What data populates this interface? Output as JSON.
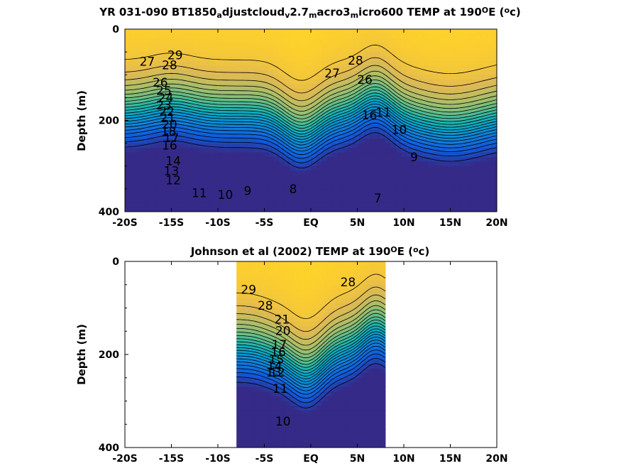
{
  "chart_data": [
    {
      "type": "contour",
      "title_parts": [
        "YR 031-090 BT1850",
        "a",
        "djustcloud",
        "v",
        "2.7",
        "m",
        "acro3",
        "m",
        "icro600 TEMP at 190",
        "O",
        "E (",
        "o",
        "c)"
      ],
      "ylabel": "Depth (m)",
      "xlabel": "",
      "x_ticks": [
        "-20S",
        "-15S",
        "-10S",
        "-5S",
        "EQ",
        "5N",
        "10N",
        "15N",
        "20N"
      ],
      "y_ticks": [
        "0",
        "200",
        "400"
      ],
      "xlim": [
        -20,
        20
      ],
      "ylim": [
        0,
        400
      ],
      "y_reversed": true,
      "data_extent": [
        -20,
        20
      ],
      "colormap": "parula",
      "contour_labels": [
        {
          "text": "29",
          "lat": -14.6,
          "depth": 58
        },
        {
          "text": "28",
          "lat": -15.2,
          "depth": 80
        },
        {
          "text": "27",
          "lat": -17.6,
          "depth": 72
        },
        {
          "text": "26",
          "lat": -16.2,
          "depth": 118
        },
        {
          "text": "25",
          "lat": -15.8,
          "depth": 136
        },
        {
          "text": "24",
          "lat": -15.6,
          "depth": 152
        },
        {
          "text": "23",
          "lat": -15.8,
          "depth": 168
        },
        {
          "text": "22",
          "lat": -15.5,
          "depth": 182
        },
        {
          "text": "21",
          "lat": -15.4,
          "depth": 196
        },
        {
          "text": "20",
          "lat": -15.2,
          "depth": 210
        },
        {
          "text": "18",
          "lat": -15.3,
          "depth": 226
        },
        {
          "text": "17",
          "lat": -15.0,
          "depth": 240
        },
        {
          "text": "16",
          "lat": -15.2,
          "depth": 256
        },
        {
          "text": "14",
          "lat": -14.8,
          "depth": 290
        },
        {
          "text": "13",
          "lat": -15.0,
          "depth": 312
        },
        {
          "text": "12",
          "lat": -14.8,
          "depth": 332
        },
        {
          "text": "11",
          "lat": -12.0,
          "depth": 360
        },
        {
          "text": "10",
          "lat": -9.2,
          "depth": 364
        },
        {
          "text": "9",
          "lat": -6.8,
          "depth": 356
        },
        {
          "text": "8",
          "lat": -1.9,
          "depth": 352
        },
        {
          "text": "7",
          "lat": 7.2,
          "depth": 372
        },
        {
          "text": "28",
          "lat": 4.8,
          "depth": 70
        },
        {
          "text": "27",
          "lat": 2.3,
          "depth": 98
        },
        {
          "text": "26",
          "lat": 5.8,
          "depth": 112
        },
        {
          "text": "16",
          "lat": 6.3,
          "depth": 190
        },
        {
          "text": "11",
          "lat": 7.8,
          "depth": 184
        },
        {
          "text": "10",
          "lat": 9.5,
          "depth": 222
        },
        {
          "text": "9",
          "lat": 11.1,
          "depth": 282
        }
      ]
    },
    {
      "type": "contour",
      "title_parts": [
        "Johnson et al (2002) TEMP at 190",
        "O",
        "E (",
        "o",
        "c)"
      ],
      "ylabel": "Depth (m)",
      "xlabel": "",
      "x_ticks": [
        "-20S",
        "-15S",
        "-10S",
        "-5S",
        "EQ",
        "5N",
        "10N",
        "15N",
        "20N"
      ],
      "y_ticks": [
        "0",
        "200",
        "400"
      ],
      "xlim": [
        -20,
        20
      ],
      "ylim": [
        0,
        400
      ],
      "y_reversed": true,
      "data_extent": [
        -8,
        8
      ],
      "colormap": "parula",
      "contour_labels": [
        {
          "text": "29",
          "lat": -6.7,
          "depth": 62
        },
        {
          "text": "28",
          "lat": -4.9,
          "depth": 96
        },
        {
          "text": "28",
          "lat": 4.0,
          "depth": 46
        },
        {
          "text": "21",
          "lat": -3.1,
          "depth": 126
        },
        {
          "text": "20",
          "lat": -3.0,
          "depth": 150
        },
        {
          "text": "17",
          "lat": -3.4,
          "depth": 180
        },
        {
          "text": "16",
          "lat": -3.5,
          "depth": 196
        },
        {
          "text": "15",
          "lat": -3.7,
          "depth": 212
        },
        {
          "text": "14",
          "lat": -3.9,
          "depth": 226
        },
        {
          "text": "13",
          "lat": -4.0,
          "depth": 240
        },
        {
          "text": "12",
          "lat": -3.6,
          "depth": 240
        },
        {
          "text": "11",
          "lat": -3.3,
          "depth": 275
        },
        {
          "text": "10",
          "lat": -3.0,
          "depth": 345
        }
      ]
    }
  ]
}
